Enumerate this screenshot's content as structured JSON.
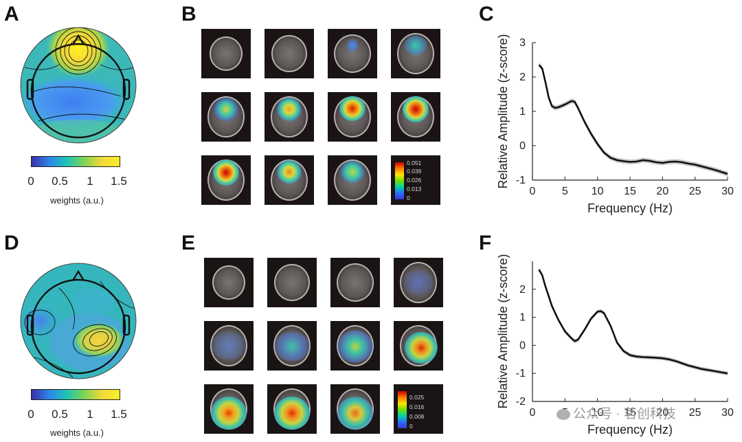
{
  "figure": {
    "panels": {
      "A": {
        "label": "A"
      },
      "B": {
        "label": "B"
      },
      "C": {
        "label": "C"
      },
      "D": {
        "label": "D"
      },
      "E": {
        "label": "E"
      },
      "F": {
        "label": "F"
      }
    },
    "topo_colorbar": {
      "ticks": [
        "0",
        "0.5",
        "1",
        "1.5"
      ],
      "label": "weights (a.u.)",
      "colors": [
        "#3b2fa8",
        "#2c86e8",
        "#1fc4b4",
        "#7fd454",
        "#f3d93a",
        "#f8ee26"
      ]
    },
    "source_legend_top": {
      "values": [
        "0.051",
        "0.039",
        "0.026",
        "0.013",
        "0"
      ]
    },
    "source_legend_bottom": {
      "values": [
        "0.025",
        "0.016",
        "0.008",
        "0"
      ]
    },
    "watermark": "公众号 · 茗创科技"
  },
  "chart_data": [
    {
      "panel": "C",
      "type": "line",
      "xlabel": "Frequency (Hz)",
      "ylabel": "Relative Amplitude (z-score)",
      "xlim": [
        0,
        30
      ],
      "ylim": [
        -1,
        3
      ],
      "xticks": [
        "0",
        "5",
        "10",
        "15",
        "20",
        "25",
        "30"
      ],
      "yticks": [
        "-1",
        "0",
        "1",
        "2",
        "3"
      ],
      "x": [
        1,
        1.5,
        2,
        2.5,
        3,
        3.5,
        4,
        5,
        6,
        6.5,
        7,
        8,
        9,
        10,
        11,
        12,
        13,
        14,
        15,
        16,
        17,
        18,
        19,
        20,
        21,
        22,
        23,
        24,
        25,
        26,
        27,
        28,
        29,
        30
      ],
      "y": [
        2.35,
        2.25,
        1.85,
        1.4,
        1.15,
        1.1,
        1.12,
        1.2,
        1.3,
        1.28,
        1.1,
        0.7,
        0.35,
        0.05,
        -0.2,
        -0.35,
        -0.42,
        -0.45,
        -0.47,
        -0.46,
        -0.42,
        -0.44,
        -0.48,
        -0.5,
        -0.47,
        -0.46,
        -0.48,
        -0.52,
        -0.55,
        -0.6,
        -0.65,
        -0.7,
        -0.76,
        -0.82
      ]
    },
    {
      "panel": "F",
      "type": "line",
      "xlabel": "Frequency (Hz)",
      "ylabel": "Relative Amplitude (z-score)",
      "xlim": [
        0,
        30
      ],
      "ylim": [
        -2,
        3
      ],
      "xticks": [
        "0",
        "5",
        "10",
        "15",
        "20",
        "25",
        "30"
      ],
      "yticks": [
        "-2",
        "-1",
        "0",
        "1",
        "2"
      ],
      "x": [
        1,
        1.5,
        2,
        3,
        4,
        5,
        6,
        6.5,
        7,
        8,
        9,
        10,
        10.5,
        11,
        12,
        13,
        14,
        15,
        16,
        17,
        18,
        19,
        20,
        21,
        22,
        23,
        24,
        25,
        26,
        27,
        28,
        29,
        30
      ],
      "y": [
        2.7,
        2.5,
        2.1,
        1.4,
        0.9,
        0.5,
        0.25,
        0.15,
        0.2,
        0.55,
        0.95,
        1.2,
        1.22,
        1.15,
        0.7,
        0.1,
        -0.2,
        -0.35,
        -0.4,
        -0.42,
        -0.43,
        -0.44,
        -0.46,
        -0.5,
        -0.56,
        -0.64,
        -0.72,
        -0.78,
        -0.84,
        -0.88,
        -0.92,
        -0.96,
        -1.0
      ]
    }
  ]
}
